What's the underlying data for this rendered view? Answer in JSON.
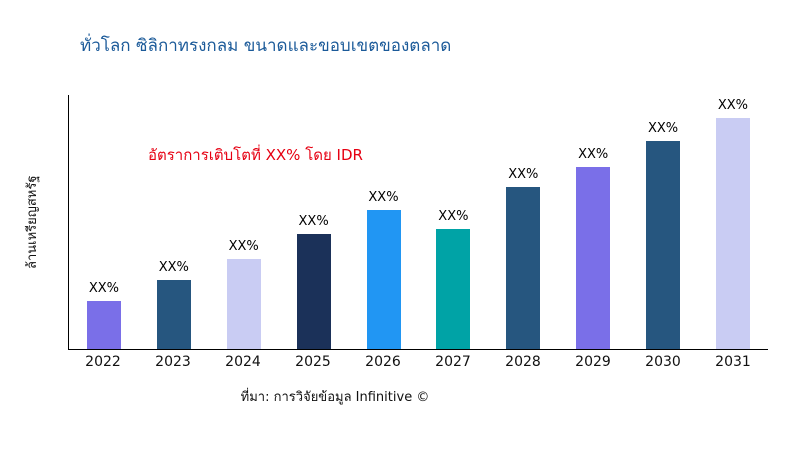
{
  "page": {
    "title": "ทั่วโลก ซิลิกาทรงกลม ขนาดและขอบเขตของตลาด",
    "title_color": "#1B5A99",
    "annotation": "อัตราการเติบโตที่ XX% โดย IDR",
    "annotation_color": "#E60012",
    "y_axis_label": "ล้านเหรียญสหรัฐ",
    "source": "ที่มา: การวิจัยข้อมูล Infinitive ©"
  },
  "chart_data": {
    "type": "bar",
    "title": "ทั่วโลก ซิลิกาทรงกลม ขนาดและขอบเขตของตลาด",
    "xlabel": "",
    "ylabel": "ล้านเหรียญสหรัฐ",
    "categories": [
      "2022",
      "2023",
      "2024",
      "2025",
      "2026",
      "2027",
      "2028",
      "2029",
      "2030",
      "2031"
    ],
    "values": [
      21,
      30,
      39,
      50,
      60,
      52,
      70,
      79,
      90,
      100
    ],
    "ylim": [
      0,
      110
    ],
    "note": "actual values masked in chart; every bar is labeled XX%, values are relative estimates from bar heights",
    "bar_labels": [
      "XX%",
      "XX%",
      "XX%",
      "XX%",
      "XX%",
      "XX%",
      "XX%",
      "XX%",
      "XX%",
      "XX%"
    ],
    "bar_colors": [
      "#7A6FE8",
      "#26567F",
      "#C9CCF3",
      "#1B3159",
      "#2196F3",
      "#00A3A6",
      "#26567F",
      "#7A6FE8",
      "#26567F",
      "#C9CCF3"
    ],
    "grid": false,
    "legend": false,
    "annotation": "อัตราการเติบโตที่ XX% โดย IDR",
    "source": "ที่มา: การวิจัยข้อมูล Infinitive ©"
  }
}
